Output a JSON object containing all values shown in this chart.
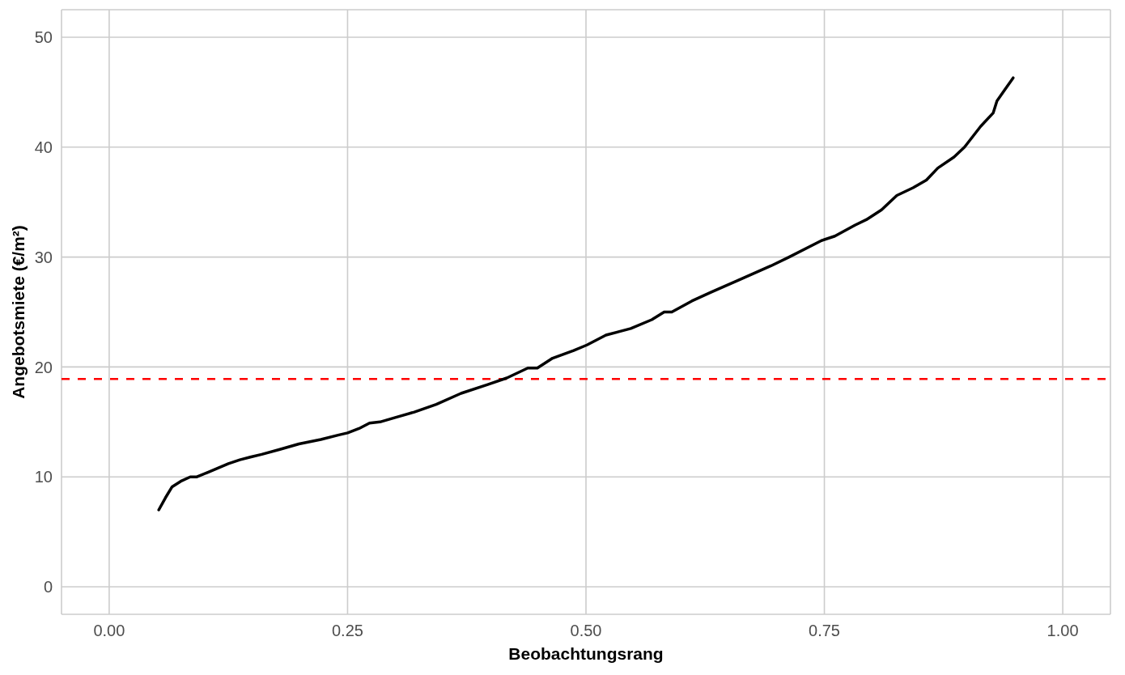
{
  "chart_data": {
    "type": "line",
    "xlabel": "Beobachtungsrang",
    "ylabel": "Angebotsmiete (€/m²)",
    "x": [
      0.052,
      0.059,
      0.066,
      0.075,
      0.085,
      0.092,
      0.103,
      0.114,
      0.125,
      0.137,
      0.148,
      0.16,
      0.179,
      0.199,
      0.222,
      0.24,
      0.25,
      0.262,
      0.273,
      0.284,
      0.3,
      0.32,
      0.343,
      0.369,
      0.397,
      0.417,
      0.439,
      0.449,
      0.465,
      0.487,
      0.501,
      0.521,
      0.547,
      0.569,
      0.582,
      0.59,
      0.611,
      0.631,
      0.66,
      0.694,
      0.713,
      0.747,
      0.761,
      0.782,
      0.794,
      0.81,
      0.826,
      0.843,
      0.857,
      0.869,
      0.886,
      0.897,
      0.914,
      0.927,
      0.931,
      0.939,
      0.948
    ],
    "series": [
      {
        "color": "#000000",
        "values": [
          7.0,
          8.1,
          9.1,
          9.6,
          10.0,
          10.0,
          10.4,
          10.8,
          11.2,
          11.55,
          11.8,
          12.05,
          12.5,
          13.0,
          13.4,
          13.8,
          14.0,
          14.4,
          14.9,
          15.0,
          15.4,
          15.9,
          16.6,
          17.6,
          18.4,
          19.0,
          19.9,
          19.9,
          20.8,
          21.5,
          22.0,
          22.9,
          23.5,
          24.3,
          25.0,
          25.0,
          26.0,
          26.8,
          27.9,
          29.2,
          30.0,
          31.5,
          31.9,
          32.9,
          33.4,
          34.3,
          35.6,
          36.3,
          37.0,
          38.1,
          39.1,
          40.0,
          41.9,
          43.1,
          44.2,
          45.2,
          46.3
        ]
      }
    ],
    "xlim": [
      -0.05,
      1.05
    ],
    "ylim": [
      -2.5,
      52.5
    ],
    "xticks": [
      {
        "value": 0,
        "label": "0.00"
      },
      {
        "value": 0.25,
        "label": "0.25"
      },
      {
        "value": 0.5,
        "label": "0.50"
      },
      {
        "value": 0.75,
        "label": "0.75"
      },
      {
        "value": 1,
        "label": "1.00"
      }
    ],
    "yticks": [
      0,
      10,
      20,
      30,
      40,
      50
    ],
    "grid": true,
    "ref_lines": [
      {
        "axis": "y",
        "value": 18.9,
        "color": "#ff0000",
        "line_style": "dashed"
      }
    ]
  }
}
